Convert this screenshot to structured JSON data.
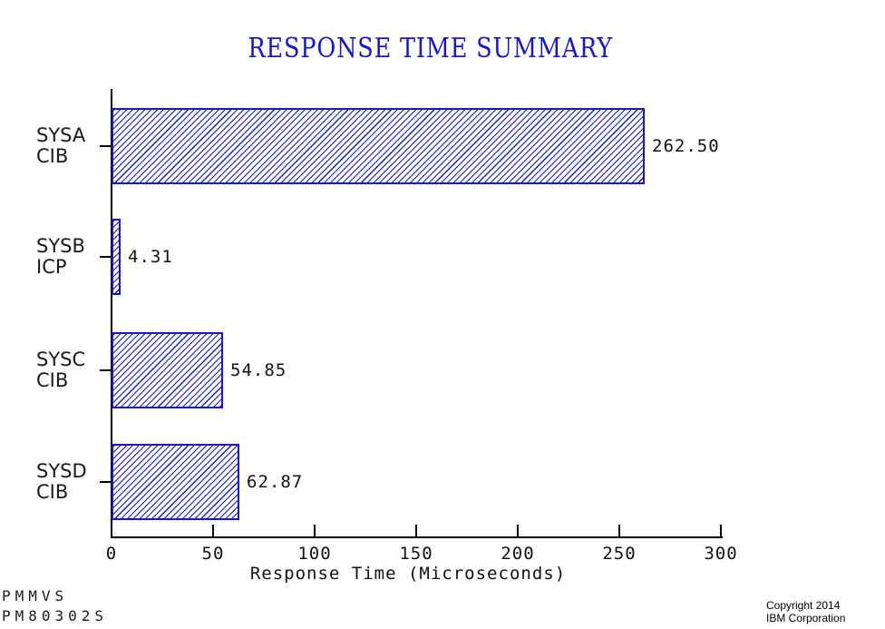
{
  "title": "RESPONSE TIME SUMMARY",
  "chart_data": {
    "type": "bar",
    "orientation": "horizontal",
    "title": "RESPONSE TIME SUMMARY",
    "xlabel": "Response Time (Microseconds)",
    "xlim": [
      0,
      300
    ],
    "xticks": [
      "0",
      "50",
      "100",
      "150",
      "200",
      "250",
      "300"
    ],
    "xtick_values": [
      0,
      50,
      100,
      150,
      200,
      250,
      300
    ],
    "grid": false,
    "legend": "none",
    "bars": [
      {
        "category_lines": [
          "SYSA",
          "CIB"
        ],
        "value": 262.5,
        "value_label": "262.50"
      },
      {
        "category_lines": [
          "SYSB",
          "ICP"
        ],
        "value": 4.31,
        "value_label": "4.31"
      },
      {
        "category_lines": [
          "SYSC",
          "CIB"
        ],
        "value": 54.85,
        "value_label": "54.85"
      },
      {
        "category_lines": [
          "SYSD",
          "CIB"
        ],
        "value": 62.87,
        "value_label": "62.87"
      }
    ],
    "bar_style": {
      "fill": "hatch-forward-diagonal",
      "color": "#1414e0",
      "background": "#ffffff"
    }
  },
  "colors": {
    "title": "#1414e0",
    "bar": "#1414e0",
    "axis": "#000000",
    "text": "#111111"
  },
  "footer": {
    "program_line1": "PMMVS",
    "program_line2": "PM80302S",
    "copyright_line1": "Copyright 2014",
    "copyright_line2": "IBM Corporation"
  }
}
